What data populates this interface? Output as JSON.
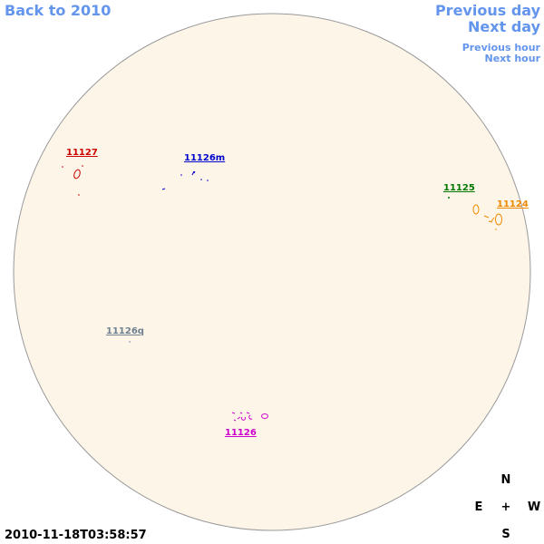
{
  "navigation": {
    "back": "Back to 2010",
    "previous_day": "Previous day",
    "next_day": "Next day",
    "previous_hour": "Previous hour",
    "next_hour": "Next hour"
  },
  "regions": [
    {
      "label": "11127",
      "color": "#cc0000"
    },
    {
      "label": "11126m",
      "color": "#0000cc"
    },
    {
      "label": "11125",
      "color": "#007700"
    },
    {
      "label": "11124",
      "color": "#ee8800"
    },
    {
      "label": "11126q",
      "color": "#708090"
    },
    {
      "label": "11126",
      "color": "#cc00cc"
    }
  ],
  "timestamp": "2010-11-18T03:58:57",
  "compass": {
    "north": "N",
    "east": "E",
    "center": "+",
    "west": "W",
    "south": "S"
  }
}
